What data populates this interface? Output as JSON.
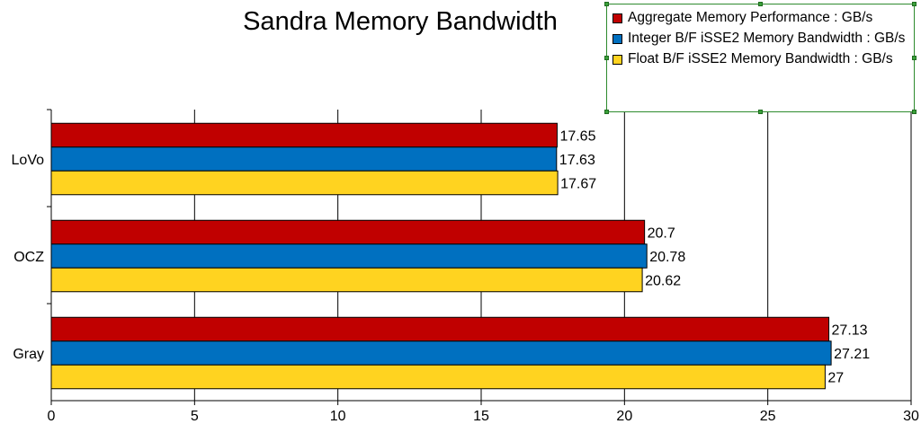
{
  "chart_data": {
    "type": "bar",
    "orientation": "horizontal",
    "title": "Sandra Memory Bandwidth",
    "categories": [
      "LoVo",
      "OCZ",
      "Gray"
    ],
    "series": [
      {
        "name": "Aggregate Memory Performance : GB/s",
        "color": "#c00000",
        "values": [
          17.65,
          20.7,
          27.13
        ],
        "labels": [
          "17.65",
          "20.7",
          "27.13"
        ]
      },
      {
        "name": "Integer B/F iSSE2 Memory Bandwidth : GB/s",
        "color": "#0070c0",
        "values": [
          17.63,
          20.78,
          27.21
        ],
        "labels": [
          "17.63",
          "20.78",
          "27.21"
        ]
      },
      {
        "name": "Float B/F iSSE2 Memory Bandwidth : GB/s",
        "color": "#ffd320",
        "values": [
          17.67,
          20.62,
          27
        ],
        "labels": [
          "17.67",
          "20.62",
          "27"
        ]
      }
    ],
    "xticks": [
      "0",
      "5",
      "10",
      "15",
      "20",
      "25",
      "30"
    ],
    "xlim": [
      0,
      30
    ],
    "grid": true,
    "legend_position": "top-right"
  }
}
